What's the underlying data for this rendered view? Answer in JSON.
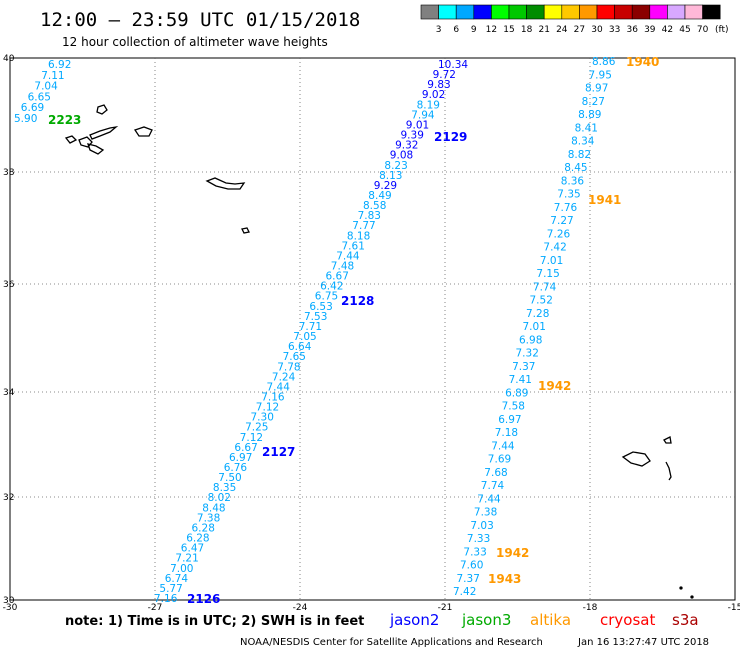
{
  "header": {
    "title": "12:00 – 23:59 UTC 01/15/2018",
    "subtitle": "12 hour collection of altimeter wave heights"
  },
  "colorbar": {
    "unit": "(ft)",
    "labels": [
      "3",
      "6",
      "9",
      "12",
      "15",
      "18",
      "21",
      "24",
      "27",
      "30",
      "33",
      "36",
      "39",
      "42",
      "45",
      "70"
    ],
    "colors": [
      "#808080",
      "#00ffff",
      "#00a8ff",
      "#0000ff",
      "#00ff00",
      "#00c800",
      "#008c00",
      "#ffff00",
      "#ffc800",
      "#ff9900",
      "#ff0000",
      "#c80000",
      "#8b0000",
      "#ff00ff",
      "#d8a8ff",
      "#ffb8d8",
      "#000000"
    ]
  },
  "map": {
    "lon_ticks": [
      "-30",
      "-27",
      "-24",
      "-21",
      "-18",
      "-15"
    ],
    "lat_ticks": [
      "40",
      "38",
      "36",
      "34",
      "32",
      "30"
    ],
    "grid": true
  },
  "colors": {
    "light": "#00a8ff",
    "dark": "#0000ff",
    "pass_orange": "#ff9900",
    "pass_green": "#00aa00",
    "pass_blue": "#0000ff"
  },
  "tracks": [
    {
      "id": "track-2223",
      "points": [
        {
          "text": "6.92",
          "c": "light"
        },
        {
          "text": "7.11",
          "c": "light"
        },
        {
          "text": "7.04",
          "c": "light"
        },
        {
          "text": "6.65",
          "c": "light"
        },
        {
          "text": "6.69",
          "c": "light"
        },
        {
          "text": "5.90",
          "c": "light"
        }
      ]
    },
    {
      "id": "track-jason2",
      "points": [
        {
          "text": "10.34",
          "c": "dark"
        },
        {
          "text": "9.72",
          "c": "dark"
        },
        {
          "text": "9.83",
          "c": "dark"
        },
        {
          "text": "9.02",
          "c": "dark"
        },
        {
          "text": "8.19",
          "c": "light"
        },
        {
          "text": "7.94",
          "c": "light"
        },
        {
          "text": "9.01",
          "c": "dark"
        },
        {
          "text": "9.39",
          "c": "dark"
        },
        {
          "text": "9.32",
          "c": "dark"
        },
        {
          "text": "9.08",
          "c": "dark"
        },
        {
          "text": "8.23",
          "c": "light"
        },
        {
          "text": "8.13",
          "c": "light"
        },
        {
          "text": "9.29",
          "c": "dark"
        },
        {
          "text": "8.49",
          "c": "light"
        },
        {
          "text": "8.58",
          "c": "light"
        },
        {
          "text": "7.83",
          "c": "light"
        },
        {
          "text": "7.77",
          "c": "light"
        },
        {
          "text": "8.18",
          "c": "light"
        },
        {
          "text": "7.61",
          "c": "light"
        },
        {
          "text": "7.44",
          "c": "light"
        },
        {
          "text": "7.48",
          "c": "light"
        },
        {
          "text": "6.67",
          "c": "light"
        },
        {
          "text": "6.42",
          "c": "light"
        },
        {
          "text": "6.75",
          "c": "light"
        },
        {
          "text": "6.53",
          "c": "light"
        },
        {
          "text": "7.53",
          "c": "light"
        },
        {
          "text": "7.71",
          "c": "light"
        },
        {
          "text": "7.05",
          "c": "light"
        },
        {
          "text": "6.64",
          "c": "light"
        },
        {
          "text": "7.65",
          "c": "light"
        },
        {
          "text": "7.78",
          "c": "light"
        },
        {
          "text": "7.24",
          "c": "light"
        },
        {
          "text": "7.44",
          "c": "light"
        },
        {
          "text": "7.16",
          "c": "light"
        },
        {
          "text": "7.12",
          "c": "light"
        },
        {
          "text": "7.30",
          "c": "light"
        },
        {
          "text": "7.25",
          "c": "light"
        },
        {
          "text": "7.12",
          "c": "light"
        },
        {
          "text": "6.67",
          "c": "light"
        },
        {
          "text": "6.97",
          "c": "light"
        },
        {
          "text": "6.76",
          "c": "light"
        },
        {
          "text": "7.50",
          "c": "light"
        },
        {
          "text": "8.35",
          "c": "light"
        },
        {
          "text": "8.02",
          "c": "light"
        },
        {
          "text": "8.48",
          "c": "light"
        },
        {
          "text": "7.38",
          "c": "light"
        },
        {
          "text": "6.28",
          "c": "light"
        },
        {
          "text": "6.28",
          "c": "light"
        },
        {
          "text": "6.47",
          "c": "light"
        },
        {
          "text": "7.21",
          "c": "light"
        },
        {
          "text": "7.00",
          "c": "light"
        },
        {
          "text": "6.74",
          "c": "light"
        },
        {
          "text": "5.77",
          "c": "light"
        },
        {
          "text": "7.16",
          "c": "light"
        }
      ]
    },
    {
      "id": "track-altika",
      "points": [
        {
          "text": "8.86",
          "c": "light"
        },
        {
          "text": "7.95",
          "c": "light"
        },
        {
          "text": "8.97",
          "c": "light"
        },
        {
          "text": "8.27",
          "c": "light"
        },
        {
          "text": "8.89",
          "c": "light"
        },
        {
          "text": "8.41",
          "c": "light"
        },
        {
          "text": "8.34",
          "c": "light"
        },
        {
          "text": "8.82",
          "c": "light"
        },
        {
          "text": "8.45",
          "c": "light"
        },
        {
          "text": "8.36",
          "c": "light"
        },
        {
          "text": "7.35",
          "c": "light"
        },
        {
          "text": "7.76",
          "c": "light"
        },
        {
          "text": "7.27",
          "c": "light"
        },
        {
          "text": "7.26",
          "c": "light"
        },
        {
          "text": "7.42",
          "c": "light"
        },
        {
          "text": "7.01",
          "c": "light"
        },
        {
          "text": "7.15",
          "c": "light"
        },
        {
          "text": "7.74",
          "c": "light"
        },
        {
          "text": "7.52",
          "c": "light"
        },
        {
          "text": "7.28",
          "c": "light"
        },
        {
          "text": "7.01",
          "c": "light"
        },
        {
          "text": "6.98",
          "c": "light"
        },
        {
          "text": "7.32",
          "c": "light"
        },
        {
          "text": "7.37",
          "c": "light"
        },
        {
          "text": "7.41",
          "c": "light"
        },
        {
          "text": "6.89",
          "c": "light"
        },
        {
          "text": "7.58",
          "c": "light"
        },
        {
          "text": "6.97",
          "c": "light"
        },
        {
          "text": "7.18",
          "c": "light"
        },
        {
          "text": "7.44",
          "c": "light"
        },
        {
          "text": "7.69",
          "c": "light"
        },
        {
          "text": "7.68",
          "c": "light"
        },
        {
          "text": "7.74",
          "c": "light"
        },
        {
          "text": "7.44",
          "c": "light"
        },
        {
          "text": "7.38",
          "c": "light"
        },
        {
          "text": "7.03",
          "c": "light"
        },
        {
          "text": "7.33",
          "c": "light"
        },
        {
          "text": "7.33",
          "c": "light"
        },
        {
          "text": "7.60",
          "c": "light"
        },
        {
          "text": "7.37",
          "c": "light"
        },
        {
          "text": "7.42",
          "c": "light"
        }
      ]
    }
  ],
  "pass_labels": [
    {
      "text": "2223",
      "c": "pass_green"
    },
    {
      "text": "2129",
      "c": "pass_blue"
    },
    {
      "text": "2128",
      "c": "pass_blue"
    },
    {
      "text": "2127",
      "c": "pass_blue"
    },
    {
      "text": "2126",
      "c": "pass_blue"
    },
    {
      "text": "1940",
      "c": "pass_orange"
    },
    {
      "text": "1941",
      "c": "pass_orange"
    },
    {
      "text": "1942",
      "c": "pass_orange"
    },
    {
      "text": "1942",
      "c": "pass_orange"
    },
    {
      "text": "1943",
      "c": "pass_orange"
    }
  ],
  "note": "note: 1) Time is in UTC; 2) SWH is in feet",
  "legend": [
    {
      "text": "jason2",
      "color": "#0000ff"
    },
    {
      "text": "jason3",
      "color": "#00aa00"
    },
    {
      "text": "altika",
      "color": "#ff9900"
    },
    {
      "text": "cryosat",
      "color": "#ff0000"
    },
    {
      "text": "s3a",
      "color": "#aa0000"
    }
  ],
  "footer": {
    "credit": "NOAA/NESDIS Center for Satellite Applications and Research",
    "timestamp": "Jan 16 13:27:47 UTC 2018"
  }
}
